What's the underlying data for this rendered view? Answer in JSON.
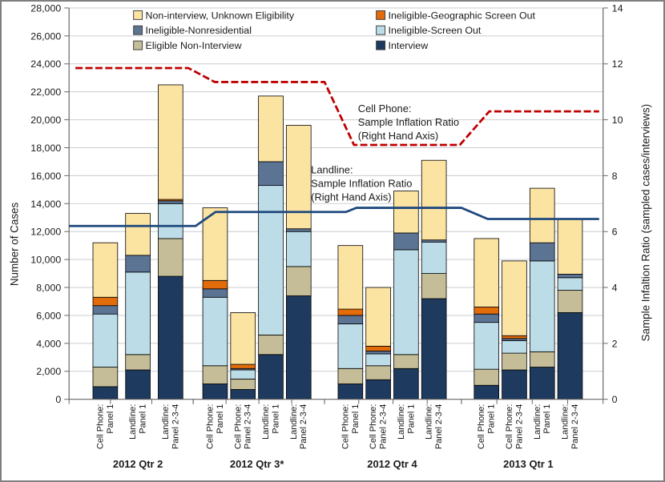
{
  "chart_data": {
    "type": "stacked-bar-with-lines",
    "title": "",
    "left_axis": {
      "label": "Number of Cases",
      "min": 0,
      "max": 28000,
      "tick_step": 2000,
      "tick_labels": [
        "0",
        "2,000",
        "4,000",
        "6,000",
        "8,000",
        "10,000",
        "12,000",
        "14,000",
        "16,000",
        "18,000",
        "20,000",
        "22,000",
        "24,000",
        "26,000",
        "28,000"
      ]
    },
    "right_axis": {
      "label": "Sample Infaltion Ratio (sampled cases/interviews)",
      "min": 0,
      "max": 14,
      "tick_step": 2,
      "tick_labels": [
        "0",
        "2",
        "4",
        "6",
        "8",
        "10",
        "12",
        "14"
      ]
    },
    "grid": true,
    "stack_series": [
      {
        "key": "interview",
        "name": "Interview",
        "color": "#1E3A5E"
      },
      {
        "key": "eligible_non_interview",
        "name": "Eligible Non-Interview",
        "color": "#C4BD97"
      },
      {
        "key": "screen_out",
        "name": "Ineligible-Screen Out",
        "color": "#BCDDE8"
      },
      {
        "key": "nonresidential",
        "name": "Ineligible-Nonresidential",
        "color": "#5C7494"
      },
      {
        "key": "geo_screen_out",
        "name": "Ineligible-Geographic Screen Out",
        "color": "#E36C0A"
      },
      {
        "key": "unknown",
        "name": "Non-interview, Unknown  Eligibility",
        "color": "#FBE3A2"
      }
    ],
    "legend_order": [
      "unknown",
      "geo_screen_out",
      "nonresidential",
      "screen_out",
      "eligible_non_interview",
      "interview"
    ],
    "groups": [
      {
        "label": "2012 Qtr 2",
        "bars": [
          {
            "label_lines": [
              "Cell Phone:",
              "Panel 1"
            ],
            "segments": {
              "interview": 900,
              "eligible_non_interview": 1400,
              "screen_out": 3800,
              "nonresidential": 600,
              "geo_screen_out": 600,
              "unknown": 3900
            }
          },
          {
            "label_lines": [
              "Landline:",
              "Panel 1"
            ],
            "segments": {
              "interview": 2100,
              "eligible_non_interview": 1100,
              "screen_out": 5900,
              "nonresidential": 1200,
              "geo_screen_out": 0,
              "unknown": 3000
            }
          },
          {
            "label_lines": [
              "Landline:",
              "Panel 2-3-4"
            ],
            "segments": {
              "interview": 8800,
              "eligible_non_interview": 2700,
              "screen_out": 2500,
              "nonresidential": 200,
              "geo_screen_out": 100,
              "unknown": 8200
            }
          }
        ]
      },
      {
        "label": "2012 Qtr 3*",
        "bars": [
          {
            "label_lines": [
              "Cell Phone:",
              "Panel 1"
            ],
            "segments": {
              "interview": 1100,
              "eligible_non_interview": 1300,
              "screen_out": 4900,
              "nonresidential": 600,
              "geo_screen_out": 600,
              "unknown": 5200
            }
          },
          {
            "label_lines": [
              "Cell Phone:",
              "Panel 2-3-4"
            ],
            "segments": {
              "interview": 700,
              "eligible_non_interview": 750,
              "screen_out": 650,
              "nonresidential": 100,
              "geo_screen_out": 300,
              "unknown": 3700
            }
          },
          {
            "label_lines": [
              "Landline:",
              "Panel 1"
            ],
            "segments": {
              "interview": 3200,
              "eligible_non_interview": 1400,
              "screen_out": 10700,
              "nonresidential": 1700,
              "geo_screen_out": 0,
              "unknown": 4700
            }
          },
          {
            "label_lines": [
              "Landline:",
              "Panel 2-3-4"
            ],
            "segments": {
              "interview": 7400,
              "eligible_non_interview": 2100,
              "screen_out": 2500,
              "nonresidential": 200,
              "geo_screen_out": 0,
              "unknown": 7400
            }
          }
        ]
      },
      {
        "label": "2012 Qtr 4",
        "bars": [
          {
            "label_lines": [
              "Cell Phone:",
              "Panel 1"
            ],
            "segments": {
              "interview": 1100,
              "eligible_non_interview": 1100,
              "screen_out": 3200,
              "nonresidential": 600,
              "geo_screen_out": 450,
              "unknown": 4550
            }
          },
          {
            "label_lines": [
              "Cell Phone:",
              "Panel 2-3-4"
            ],
            "segments": {
              "interview": 1400,
              "eligible_non_interview": 1000,
              "screen_out": 850,
              "nonresidential": 200,
              "geo_screen_out": 350,
              "unknown": 4200
            }
          },
          {
            "label_lines": [
              "Landline:",
              "Panel 1"
            ],
            "segments": {
              "interview": 2200,
              "eligible_non_interview": 1000,
              "screen_out": 7500,
              "nonresidential": 1200,
              "geo_screen_out": 0,
              "unknown": 3000
            }
          },
          {
            "label_lines": [
              "Landline:",
              "Panel 2-3-4"
            ],
            "segments": {
              "interview": 7200,
              "eligible_non_interview": 1800,
              "screen_out": 2250,
              "nonresidential": 150,
              "geo_screen_out": 0,
              "unknown": 5700
            }
          }
        ]
      },
      {
        "label": "2013 Qtr 1",
        "bars": [
          {
            "label_lines": [
              "Cell Phone:",
              "Panel 1"
            ],
            "segments": {
              "interview": 1000,
              "eligible_non_interview": 1150,
              "screen_out": 3350,
              "nonresidential": 600,
              "geo_screen_out": 500,
              "unknown": 4900
            }
          },
          {
            "label_lines": [
              "Cell Phone:",
              "Panel 2-3-4"
            ],
            "segments": {
              "interview": 2100,
              "eligible_non_interview": 1200,
              "screen_out": 900,
              "nonresidential": 150,
              "geo_screen_out": 200,
              "unknown": 5350
            }
          },
          {
            "label_lines": [
              "Landline:",
              "Panel 1"
            ],
            "segments": {
              "interview": 2300,
              "eligible_non_interview": 1100,
              "screen_out": 6500,
              "nonresidential": 1300,
              "geo_screen_out": 0,
              "unknown": 3900
            }
          },
          {
            "label_lines": [
              "Landline:",
              "Panel 2-3-4"
            ],
            "segments": {
              "interview": 6200,
              "eligible_non_interview": 1600,
              "screen_out": 900,
              "nonresidential": 250,
              "geo_screen_out": 0,
              "unknown": 3950
            }
          }
        ]
      }
    ],
    "lines": [
      {
        "id": "cell-phone-ratio",
        "name": "Cell Phone: Sample Inflation Ratio (Right Hand Axis)",
        "axis": "right",
        "color": "#C00000",
        "style": "dashed",
        "values_by_quarter": [
          11.85,
          11.35,
          9.1,
          10.3
        ]
      },
      {
        "id": "landline-ratio",
        "name": "Landline: Sample Inflation Ratio (Right Hand Axis)",
        "axis": "right",
        "color": "#1F497D",
        "style": "solid",
        "values_by_quarter": [
          6.2,
          6.7,
          6.85,
          6.45
        ]
      }
    ],
    "annotations": [
      {
        "id": "cell-phone-ratio-label",
        "lines": [
          "Cell Phone:",
          "Sample Inflation Ratio",
          "(Right Hand Axis)"
        ]
      },
      {
        "id": "landline-ratio-label",
        "lines": [
          "Landline:",
          "Sample Inflation Ratio",
          "(Right Hand Axis)"
        ]
      }
    ],
    "style_colors": {
      "gridline": "#C9CDD1",
      "axis_line": "#666666",
      "text": "#1a1a1a",
      "bar_border": "#000000",
      "frame_border": "#7f7f7f"
    }
  }
}
